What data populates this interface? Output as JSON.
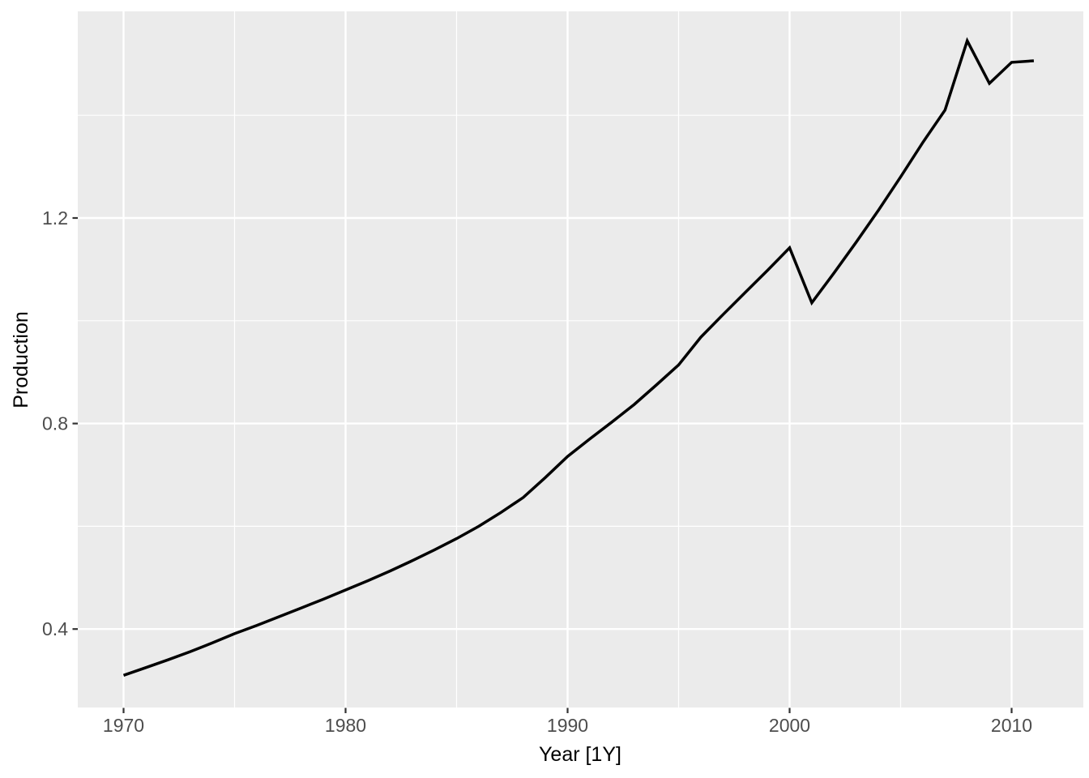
{
  "figure": {
    "kind": "ggplot-line-chart",
    "background_color": "#FFFFFF"
  },
  "theme": {
    "panel_background": "#EBEBEB",
    "grid_color": "#FFFFFF",
    "line_color": "#000000",
    "tick_label_color": "#4D4D4D",
    "axis_title_color": "#000000",
    "tick_mark_color": "#333333"
  },
  "chart_data": {
    "type": "line",
    "title": "",
    "xlabel": "Year [1Y]",
    "ylabel": "Production",
    "x": [
      1970,
      1971,
      1972,
      1973,
      1974,
      1975,
      1976,
      1977,
      1978,
      1979,
      1980,
      1981,
      1982,
      1983,
      1984,
      1985,
      1986,
      1987,
      1988,
      1989,
      1990,
      1991,
      1992,
      1993,
      1994,
      1995,
      1996,
      1997,
      1998,
      1999,
      2000,
      2001,
      2002,
      2003,
      2004,
      2005,
      2006,
      2007,
      2008,
      2009,
      2010,
      2011
    ],
    "series": [
      {
        "name": "Production",
        "values": [
          0.31,
          0.325,
          0.34,
          0.356,
          0.373,
          0.391,
          0.407,
          0.424,
          0.441,
          0.458,
          0.476,
          0.494,
          0.513,
          0.533,
          0.554,
          0.576,
          0.6,
          0.627,
          0.656,
          0.695,
          0.736,
          0.77,
          0.803,
          0.837,
          0.875,
          0.914,
          0.968,
          1.012,
          1.055,
          1.098,
          1.142,
          1.035,
          1.093,
          1.153,
          1.215,
          1.28,
          1.347,
          1.41,
          1.545,
          1.462,
          1.503,
          1.506
        ]
      }
    ],
    "x_ticks": [
      1970,
      1980,
      1990,
      2000,
      2010
    ],
    "x_tick_labels": [
      "1970",
      "1980",
      "1990",
      "2000",
      "2010"
    ],
    "x_minor_gridlines": [
      1975,
      1985,
      1995,
      2005
    ],
    "y_ticks": [
      0.4,
      0.8,
      1.2
    ],
    "y_tick_labels": [
      "0.4",
      "0.8",
      "1.2"
    ],
    "y_minor_gridlines": [
      0.6,
      1.0,
      1.4
    ],
    "xlim": [
      1967.9,
      2013.2
    ],
    "ylim": [
      0.248,
      1.602
    ],
    "grid": "major-and-minor-white-on-gray",
    "legend": "none"
  }
}
